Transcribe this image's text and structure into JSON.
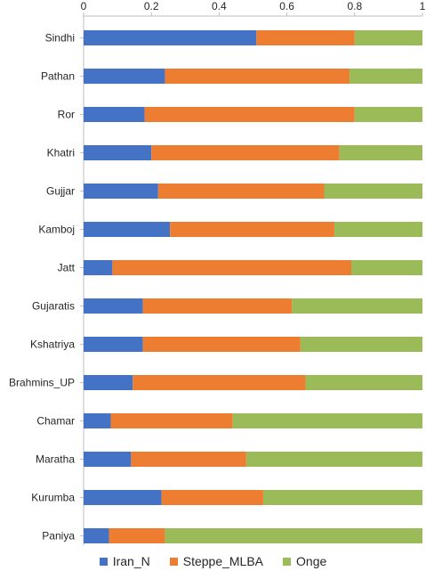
{
  "chart_data": {
    "type": "bar",
    "orientation": "horizontal",
    "stacked": true,
    "categories": [
      "Sindhi",
      "Pathan",
      "Ror",
      "Khatri",
      "Gujjar",
      "Kamboj",
      "Jatt",
      "Gujaratis",
      "Kshatriya",
      "Brahmins_UP",
      "Chamar",
      "Maratha",
      "Kurumba",
      "Paniya"
    ],
    "series": [
      {
        "name": "Iran_N",
        "color": "#4472C4",
        "values": [
          0.51,
          0.24,
          0.18,
          0.2,
          0.22,
          0.255,
          0.085,
          0.175,
          0.175,
          0.145,
          0.08,
          0.14,
          0.23,
          0.075
        ]
      },
      {
        "name": "Steppe_MLBA",
        "color": "#ED7D31",
        "values": [
          0.29,
          0.545,
          0.62,
          0.555,
          0.49,
          0.485,
          0.705,
          0.44,
          0.465,
          0.51,
          0.36,
          0.34,
          0.3,
          0.165
        ]
      },
      {
        "name": "Onge",
        "color": "#9BBB59",
        "values": [
          0.2,
          0.215,
          0.2,
          0.245,
          0.29,
          0.26,
          0.21,
          0.385,
          0.36,
          0.345,
          0.56,
          0.52,
          0.47,
          0.76
        ]
      }
    ],
    "x_ticks": [
      "0",
      "0.2",
      "0.4",
      "0.6",
      "0.8",
      "1"
    ],
    "xlim": [
      0,
      1
    ],
    "axis_position": "top",
    "grid": false,
    "legend": "bottom"
  }
}
